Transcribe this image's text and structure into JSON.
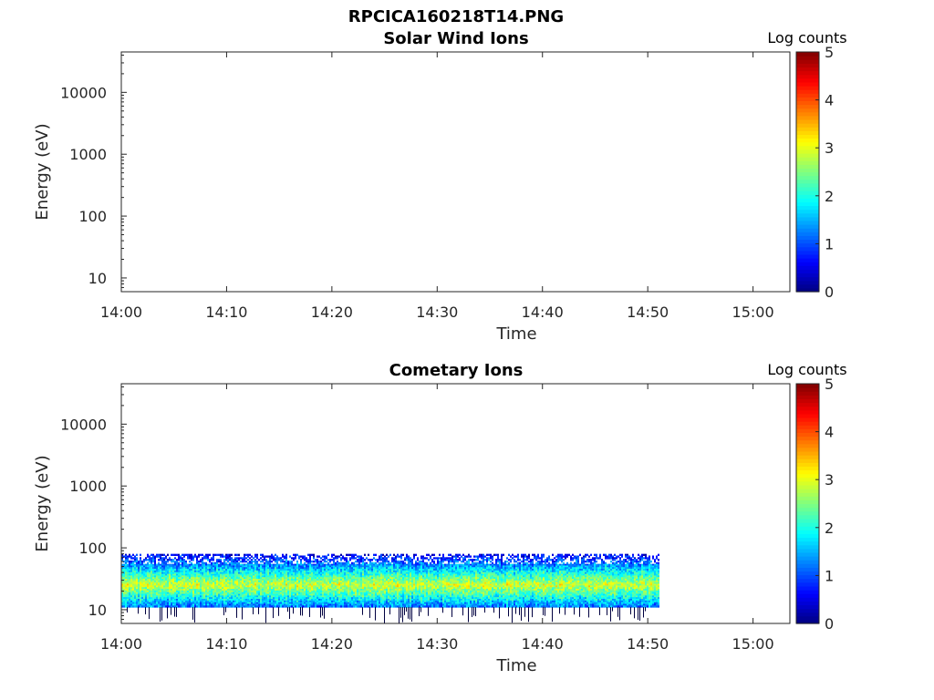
{
  "figure": {
    "title": "RPCICA160218T14.PNG"
  },
  "chart_data": [
    {
      "type": "heatmap",
      "title": "Solar Wind Ions",
      "xlabel": "Time",
      "ylabel": "Energy (eV)",
      "x_ticks": [
        "14:00",
        "14:10",
        "14:20",
        "14:30",
        "14:40",
        "14:50",
        "15:00"
      ],
      "x_tick_minutes": [
        0,
        10,
        20,
        30,
        40,
        50,
        60
      ],
      "xlim_minutes": [
        0,
        63.5
      ],
      "y_scale": "log",
      "y_ticks": [
        "10",
        "100",
        "1000",
        "10000"
      ],
      "y_tick_values": [
        10,
        100,
        1000,
        10000
      ],
      "ylim": [
        6,
        45000
      ],
      "colorbar": {
        "label": "Log counts",
        "ticks": [
          "0",
          "1",
          "2",
          "3",
          "4",
          "5"
        ],
        "range": [
          0,
          5
        ],
        "colormap": "jet"
      },
      "data": {
        "present": false
      }
    },
    {
      "type": "heatmap",
      "title": "Cometary Ions",
      "xlabel": "Time",
      "ylabel": "Energy (eV)",
      "x_ticks": [
        "14:00",
        "14:10",
        "14:20",
        "14:30",
        "14:40",
        "14:50",
        "15:00"
      ],
      "x_tick_minutes": [
        0,
        10,
        20,
        30,
        40,
        50,
        60
      ],
      "xlim_minutes": [
        0,
        63.5
      ],
      "y_scale": "log",
      "y_ticks": [
        "10",
        "100",
        "1000",
        "10000"
      ],
      "y_tick_values": [
        10,
        100,
        1000,
        10000
      ],
      "ylim": [
        6,
        45000
      ],
      "colorbar": {
        "label": "Log counts",
        "ticks": [
          "0",
          "1",
          "2",
          "3",
          "4",
          "5"
        ],
        "range": [
          0,
          5
        ],
        "colormap": "jet"
      },
      "data": {
        "present": true,
        "time_range_minutes": [
          0,
          51
        ],
        "energy_range_eV": [
          11,
          80
        ],
        "peak_energy_eV": 25,
        "peak_log_counts": 2.9,
        "background_log_counts": 0.8
      }
    }
  ]
}
